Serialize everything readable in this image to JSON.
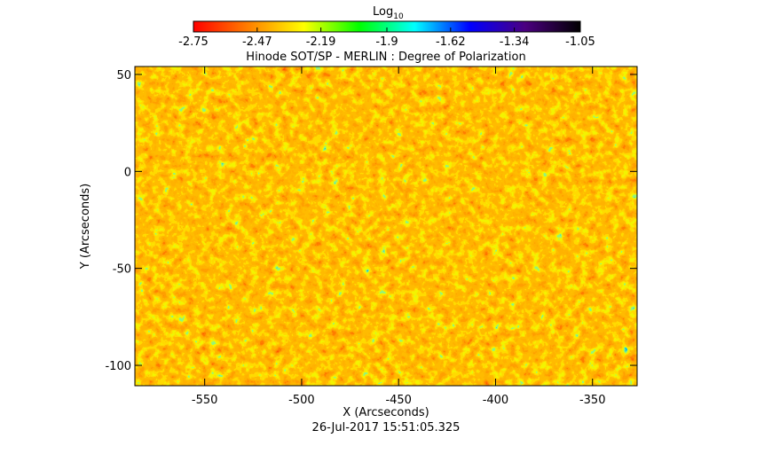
{
  "chart_data": {
    "type": "heatmap",
    "title": "Hinode SOT/SP - MERLIN : Degree of Polarization",
    "x_label": "X (Arcseconds)",
    "y_label": "Y (Arcseconds)",
    "footer": "26-Jul-2017 15:51:05.325",
    "xlim": [
      -586,
      -327
    ],
    "xticks": [
      -550,
      -500,
      -450,
      -400,
      -350
    ],
    "ylim": [
      -110.5,
      54.1
    ],
    "yticks": [
      -100,
      -50,
      0,
      50
    ],
    "colorbar_label": "Log",
    "colorbar_label_sub": "10",
    "colorbar_lim": [
      -2.75,
      -1.05
    ],
    "colorbar_ticks": [
      -2.75,
      -2.47,
      -2.19,
      -1.9,
      -1.62,
      -1.34,
      -1.05
    ],
    "colormap": [
      "#ff0000",
      "#ff8000",
      "#ffff00",
      "#00ff00",
      "#00ffff",
      "#0000ff",
      "#4b0080",
      "#000000"
    ]
  }
}
